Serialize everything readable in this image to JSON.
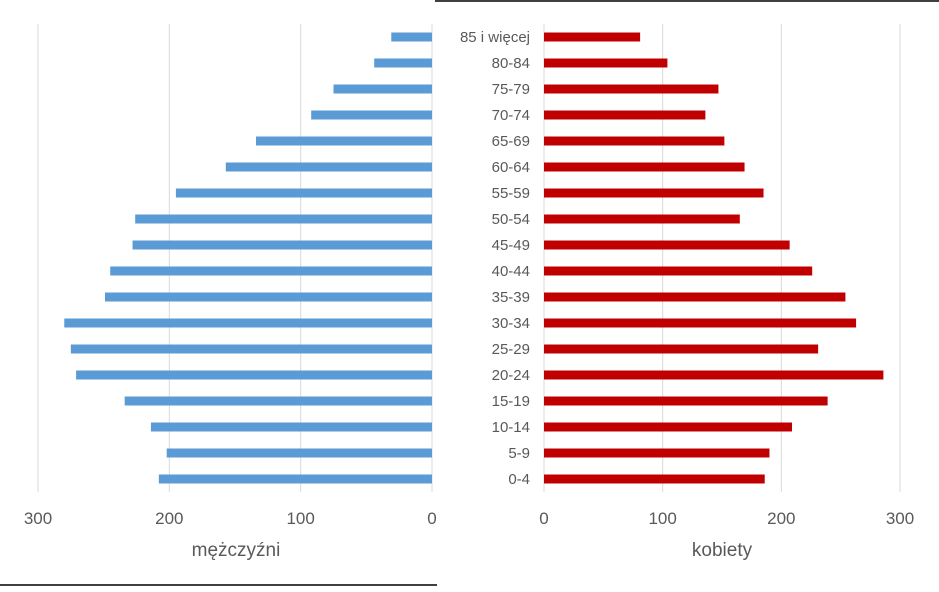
{
  "chart_data": [
    {
      "type": "bar",
      "orientation": "horizontal",
      "direction": "reversed",
      "categories": [
        "0-4",
        "5-9",
        "10-14",
        "15-19",
        "20-24",
        "25-29",
        "30-34",
        "35-39",
        "40-44",
        "45-49",
        "50-54",
        "55-59",
        "60-64",
        "65-69",
        "70-74",
        "75-79",
        "80-84",
        "85 i więcej"
      ],
      "series": [
        {
          "name": "mężczyźni",
          "color": "#5b9bd5",
          "values": [
            208,
            202,
            214,
            234,
            271,
            275,
            280,
            249,
            245,
            228,
            226,
            195,
            157,
            134,
            92,
            75,
            44,
            31
          ]
        }
      ],
      "xlabel": "mężczyźni",
      "xlim": [
        0,
        300
      ],
      "xticks": [
        "300",
        "200",
        "100",
        "0"
      ],
      "grid": true
    },
    {
      "type": "bar",
      "orientation": "horizontal",
      "categories": [
        "0-4",
        "5-9",
        "10-14",
        "15-19",
        "20-24",
        "25-29",
        "30-34",
        "35-39",
        "40-44",
        "45-49",
        "50-54",
        "55-59",
        "60-64",
        "65-69",
        "70-74",
        "75-79",
        "80-84",
        "85 i więcej"
      ],
      "series": [
        {
          "name": "kobiety",
          "color": "#c00000",
          "values": [
            186,
            190,
            209,
            239,
            286,
            231,
            263,
            254,
            226,
            207,
            165,
            185,
            169,
            152,
            136,
            147,
            104,
            81
          ]
        }
      ],
      "xlabel": "kobiety",
      "xlim": [
        0,
        300
      ],
      "xticks": [
        "0",
        "100",
        "200",
        "300"
      ],
      "grid": true
    }
  ]
}
